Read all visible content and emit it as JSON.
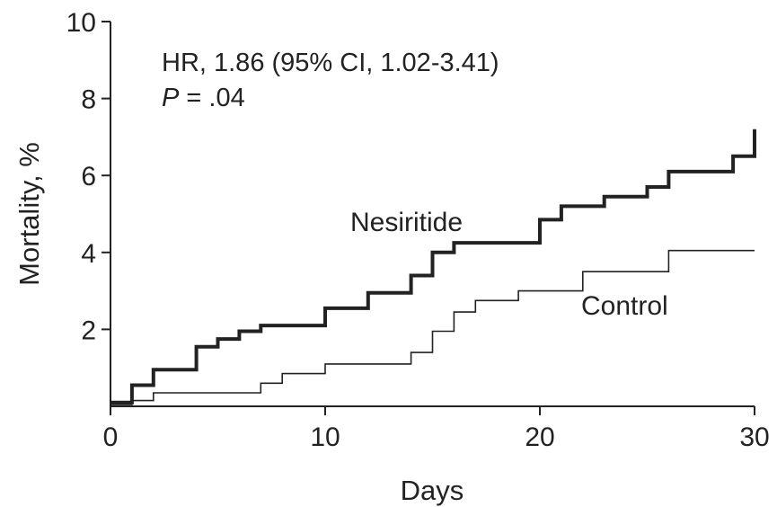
{
  "chart_data": {
    "type": "line",
    "step": true,
    "xlabel": "Days",
    "ylabel": "Mortality, %",
    "xlim": [
      0,
      30
    ],
    "ylim": [
      0,
      10
    ],
    "x_ticks": [
      "0",
      "10",
      "20",
      "30"
    ],
    "y_ticks": [
      "2",
      "4",
      "6",
      "8",
      "10"
    ],
    "grid": false,
    "annotation": {
      "line1": "HR, 1.86 (95% CI, 1.02-3.41)",
      "p_symbol": "P",
      "p_rest": " = .04"
    },
    "series": [
      {
        "name": "Nesiritide",
        "color": "#222222",
        "line_weight": "heavy",
        "points": [
          [
            0,
            0.1
          ],
          [
            1,
            0.1
          ],
          [
            1,
            0.55
          ],
          [
            2,
            0.55
          ],
          [
            2,
            0.95
          ],
          [
            4,
            0.95
          ],
          [
            4,
            1.55
          ],
          [
            5,
            1.55
          ],
          [
            5,
            1.75
          ],
          [
            6,
            1.75
          ],
          [
            6,
            1.95
          ],
          [
            7,
            1.95
          ],
          [
            7,
            2.1
          ],
          [
            10,
            2.1
          ],
          [
            10,
            2.55
          ],
          [
            12,
            2.55
          ],
          [
            12,
            2.95
          ],
          [
            14,
            2.95
          ],
          [
            14,
            3.4
          ],
          [
            15,
            3.4
          ],
          [
            15,
            4.0
          ],
          [
            16,
            4.0
          ],
          [
            16,
            4.25
          ],
          [
            20,
            4.25
          ],
          [
            20,
            4.85
          ],
          [
            21,
            4.85
          ],
          [
            21,
            5.2
          ],
          [
            23,
            5.2
          ],
          [
            23,
            5.45
          ],
          [
            25,
            5.45
          ],
          [
            25,
            5.7
          ],
          [
            26,
            5.7
          ],
          [
            26,
            6.1
          ],
          [
            29,
            6.1
          ],
          [
            29,
            6.5
          ],
          [
            30,
            6.5
          ],
          [
            30,
            7.2
          ]
        ]
      },
      {
        "name": "Control",
        "color": "#222222",
        "line_weight": "thin",
        "points": [
          [
            0,
            0.05
          ],
          [
            1,
            0.05
          ],
          [
            1,
            0.15
          ],
          [
            2,
            0.15
          ],
          [
            2,
            0.35
          ],
          [
            7,
            0.35
          ],
          [
            7,
            0.6
          ],
          [
            8,
            0.6
          ],
          [
            8,
            0.85
          ],
          [
            10,
            0.85
          ],
          [
            10,
            1.1
          ],
          [
            14,
            1.1
          ],
          [
            14,
            1.4
          ],
          [
            15,
            1.4
          ],
          [
            15,
            1.95
          ],
          [
            16,
            1.95
          ],
          [
            16,
            2.45
          ],
          [
            17,
            2.45
          ],
          [
            17,
            2.75
          ],
          [
            19,
            2.75
          ],
          [
            19,
            3.0
          ],
          [
            22,
            3.0
          ],
          [
            22,
            3.5
          ],
          [
            26,
            3.5
          ],
          [
            26,
            4.05
          ],
          [
            30,
            4.05
          ]
        ]
      }
    ]
  }
}
